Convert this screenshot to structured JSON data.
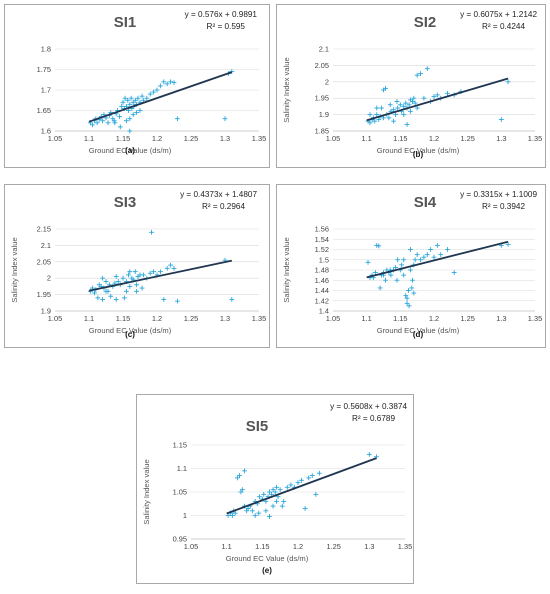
{
  "chart_data": [
    {
      "type": "scatter",
      "title": "SI1",
      "subfigure": "(a)",
      "equation": "y = 0.576x + 0.9891",
      "r2": "R² = 0.595",
      "xlabel": "Ground EC Value (ds/m)",
      "ylabel": "",
      "xlim": [
        1.05,
        1.35
      ],
      "ylim": [
        1.6,
        1.8
      ],
      "xticks": [
        "1.05",
        "1.1",
        "1.15",
        "1.2",
        "1.25",
        "1.3",
        "1.35"
      ],
      "yticks": [
        "1.6",
        "1.65",
        "1.7",
        "1.75",
        "1.8"
      ],
      "trendline": {
        "slope": 0.576,
        "intercept": 0.9891,
        "x": [
          1.1,
          1.31
        ]
      },
      "points": [
        [
          1.102,
          1.62
        ],
        [
          1.105,
          1.615
        ],
        [
          1.108,
          1.625
        ],
        [
          1.11,
          1.63
        ],
        [
          1.112,
          1.62
        ],
        [
          1.115,
          1.628
        ],
        [
          1.118,
          1.635
        ],
        [
          1.12,
          1.625
        ],
        [
          1.122,
          1.64
        ],
        [
          1.125,
          1.632
        ],
        [
          1.128,
          1.62
        ],
        [
          1.13,
          1.638
        ],
        [
          1.132,
          1.645
        ],
        [
          1.135,
          1.63
        ],
        [
          1.137,
          1.625
        ],
        [
          1.14,
          1.642
        ],
        [
          1.142,
          1.65
        ],
        [
          1.145,
          1.635
        ],
        [
          1.148,
          1.66
        ],
        [
          1.15,
          1.67
        ],
        [
          1.152,
          1.655
        ],
        [
          1.153,
          1.68
        ],
        [
          1.155,
          1.66
        ],
        [
          1.157,
          1.675
        ],
        [
          1.158,
          1.65
        ],
        [
          1.16,
          1.665
        ],
        [
          1.162,
          1.68
        ],
        [
          1.163,
          1.655
        ],
        [
          1.165,
          1.67
        ],
        [
          1.166,
          1.66
        ],
        [
          1.168,
          1.675
        ],
        [
          1.17,
          1.665
        ],
        [
          1.172,
          1.68
        ],
        [
          1.175,
          1.67
        ],
        [
          1.178,
          1.685
        ],
        [
          1.18,
          1.675
        ],
        [
          1.185,
          1.68
        ],
        [
          1.19,
          1.69
        ],
        [
          1.195,
          1.695
        ],
        [
          1.2,
          1.7
        ],
        [
          1.205,
          1.71
        ],
        [
          1.21,
          1.72
        ],
        [
          1.215,
          1.715
        ],
        [
          1.22,
          1.72
        ],
        [
          1.225,
          1.718
        ],
        [
          1.23,
          1.63
        ],
        [
          1.3,
          1.63
        ],
        [
          1.305,
          1.74
        ],
        [
          1.31,
          1.745
        ],
        [
          1.138,
          1.62
        ],
        [
          1.146,
          1.61
        ],
        [
          1.155,
          1.625
        ],
        [
          1.16,
          1.63
        ],
        [
          1.165,
          1.64
        ],
        [
          1.17,
          1.645
        ],
        [
          1.175,
          1.65
        ],
        [
          1.16,
          1.6
        ]
      ]
    },
    {
      "type": "scatter",
      "title": "SI2",
      "subfigure": "(b)",
      "equation": "y = 0.6075x + 1.2142",
      "r2": "R² = 0.4244",
      "xlabel": "Ground EC Value (ds/m)",
      "ylabel": "Salinity Index value",
      "xlim": [
        1.05,
        1.35
      ],
      "ylim": [
        1.85,
        2.1
      ],
      "xticks": [
        "1.05",
        "1.1",
        "1.15",
        "1.2",
        "1.25",
        "1.3",
        "1.35"
      ],
      "yticks": [
        "1.85",
        "1.9",
        "1.95",
        "2",
        "2.05",
        "2.1"
      ],
      "trendline": {
        "slope": 0.6075,
        "intercept": 1.2142,
        "x": [
          1.1,
          1.31
        ]
      },
      "points": [
        [
          1.102,
          1.88
        ],
        [
          1.105,
          1.875
        ],
        [
          1.108,
          1.885
        ],
        [
          1.11,
          1.89
        ],
        [
          1.112,
          1.88
        ],
        [
          1.115,
          1.9
        ],
        [
          1.118,
          1.885
        ],
        [
          1.12,
          1.895
        ],
        [
          1.122,
          1.92
        ],
        [
          1.125,
          1.975
        ],
        [
          1.128,
          1.98
        ],
        [
          1.13,
          1.9
        ],
        [
          1.133,
          1.89
        ],
        [
          1.136,
          1.91
        ],
        [
          1.14,
          1.915
        ],
        [
          1.143,
          1.9
        ],
        [
          1.146,
          1.92
        ],
        [
          1.15,
          1.93
        ],
        [
          1.152,
          1.91
        ],
        [
          1.155,
          1.925
        ],
        [
          1.158,
          1.935
        ],
        [
          1.16,
          1.92
        ],
        [
          1.163,
          1.93
        ],
        [
          1.165,
          1.945
        ],
        [
          1.168,
          1.94
        ],
        [
          1.17,
          1.95
        ],
        [
          1.172,
          1.935
        ],
        [
          1.175,
          2.02
        ],
        [
          1.18,
          2.025
        ],
        [
          1.19,
          2.04
        ],
        [
          1.185,
          1.95
        ],
        [
          1.195,
          1.94
        ],
        [
          1.2,
          1.955
        ],
        [
          1.205,
          1.96
        ],
        [
          1.21,
          1.95
        ],
        [
          1.22,
          1.965
        ],
        [
          1.23,
          1.96
        ],
        [
          1.24,
          1.97
        ],
        [
          1.3,
          1.885
        ],
        [
          1.31,
          2.0
        ],
        [
          1.105,
          1.9
        ],
        [
          1.115,
          1.92
        ],
        [
          1.125,
          1.89
        ],
        [
          1.135,
          1.93
        ],
        [
          1.145,
          1.94
        ],
        [
          1.155,
          1.9
        ],
        [
          1.165,
          1.91
        ],
        [
          1.175,
          1.92
        ],
        [
          1.14,
          1.88
        ],
        [
          1.16,
          1.87
        ]
      ]
    },
    {
      "type": "scatter",
      "title": "SI3",
      "subfigure": "(c)",
      "equation": "y = 0.4373x + 1.4807",
      "r2": "R² = 0.2964",
      "xlabel": "Ground EC Value (ds/m)",
      "ylabel": "Salinity Index value",
      "xlim": [
        1.05,
        1.35
      ],
      "ylim": [
        1.9,
        2.15
      ],
      "xticks": [
        "1.05",
        "1.1",
        "1.15",
        "1.2",
        "1.25",
        "1.3",
        "1.35"
      ],
      "yticks": [
        "1.9",
        "1.95",
        "2",
        "2.05",
        "2.1",
        "2.15"
      ],
      "trendline": {
        "slope": 0.4373,
        "intercept": 1.4807,
        "x": [
          1.1,
          1.31
        ]
      },
      "points": [
        [
          1.102,
          1.96
        ],
        [
          1.105,
          1.97
        ],
        [
          1.108,
          1.955
        ],
        [
          1.11,
          1.965
        ],
        [
          1.113,
          1.94
        ],
        [
          1.115,
          1.98
        ],
        [
          1.118,
          1.975
        ],
        [
          1.12,
          1.935
        ],
        [
          1.122,
          1.97
        ],
        [
          1.125,
          1.99
        ],
        [
          1.128,
          1.96
        ],
        [
          1.13,
          1.98
        ],
        [
          1.132,
          1.945
        ],
        [
          1.135,
          1.975
        ],
        [
          1.138,
          1.985
        ],
        [
          1.14,
          1.935
        ],
        [
          1.143,
          1.99
        ],
        [
          1.146,
          1.98
        ],
        [
          1.15,
          2.0
        ],
        [
          1.152,
          1.94
        ],
        [
          1.155,
          1.99
        ],
        [
          1.158,
          2.01
        ],
        [
          1.16,
          1.975
        ],
        [
          1.163,
          2.0
        ],
        [
          1.165,
          1.995
        ],
        [
          1.168,
          2.02
        ],
        [
          1.17,
          1.96
        ],
        [
          1.172,
          2.005
        ],
        [
          1.175,
          2.01
        ],
        [
          1.178,
          1.97
        ],
        [
          1.18,
          2.01
        ],
        [
          1.185,
          2.0
        ],
        [
          1.19,
          2.015
        ],
        [
          1.192,
          2.14
        ],
        [
          1.195,
          2.02
        ],
        [
          1.2,
          2.01
        ],
        [
          1.205,
          2.02
        ],
        [
          1.21,
          1.935
        ],
        [
          1.215,
          2.03
        ],
        [
          1.22,
          2.04
        ],
        [
          1.225,
          2.03
        ],
        [
          1.23,
          1.93
        ],
        [
          1.3,
          2.055
        ],
        [
          1.31,
          1.935
        ],
        [
          1.12,
          2.0
        ],
        [
          1.14,
          2.005
        ],
        [
          1.16,
          2.02
        ],
        [
          1.125,
          1.96
        ],
        [
          1.155,
          1.96
        ],
        [
          1.17,
          1.98
        ]
      ]
    },
    {
      "type": "scatter",
      "title": "SI4",
      "subfigure": "(d)",
      "equation": "y = 0.3315x + 1.1009",
      "r2": "R² = 0.3942",
      "xlabel": "Ground EC Value (ds/m)",
      "ylabel": "Salinity Index value",
      "xlim": [
        1.05,
        1.35
      ],
      "ylim": [
        1.4,
        1.56
      ],
      "xticks": [
        "1.05",
        "1.1",
        "1.15",
        "1.2",
        "1.25",
        "1.3",
        "1.35"
      ],
      "yticks": [
        "1.4",
        "1.42",
        "1.44",
        "1.46",
        "1.48",
        "1.5",
        "1.52",
        "1.54",
        "1.56"
      ],
      "trendline": {
        "slope": 0.3315,
        "intercept": 1.1009,
        "x": [
          1.1,
          1.31
        ]
      },
      "points": [
        [
          1.102,
          1.495
        ],
        [
          1.105,
          1.465
        ],
        [
          1.108,
          1.47
        ],
        [
          1.11,
          1.465
        ],
        [
          1.113,
          1.475
        ],
        [
          1.115,
          1.528
        ],
        [
          1.118,
          1.527
        ],
        [
          1.12,
          1.445
        ],
        [
          1.122,
          1.47
        ],
        [
          1.125,
          1.475
        ],
        [
          1.128,
          1.46
        ],
        [
          1.13,
          1.48
        ],
        [
          1.133,
          1.475
        ],
        [
          1.136,
          1.47
        ],
        [
          1.14,
          1.48
        ],
        [
          1.143,
          1.485
        ],
        [
          1.146,
          1.5
        ],
        [
          1.15,
          1.48
        ],
        [
          1.152,
          1.49
        ],
        [
          1.155,
          1.5
        ],
        [
          1.158,
          1.43
        ],
        [
          1.16,
          1.425
        ],
        [
          1.162,
          1.44
        ],
        [
          1.163,
          1.41
        ],
        [
          1.165,
          1.52
        ],
        [
          1.167,
          1.445
        ],
        [
          1.168,
          1.46
        ],
        [
          1.17,
          1.49
        ],
        [
          1.172,
          1.5
        ],
        [
          1.175,
          1.51
        ],
        [
          1.18,
          1.5
        ],
        [
          1.185,
          1.505
        ],
        [
          1.19,
          1.51
        ],
        [
          1.195,
          1.52
        ],
        [
          1.2,
          1.505
        ],
        [
          1.205,
          1.528
        ],
        [
          1.21,
          1.51
        ],
        [
          1.22,
          1.52
        ],
        [
          1.23,
          1.475
        ],
        [
          1.3,
          1.528
        ],
        [
          1.31,
          1.53
        ],
        [
          1.125,
          1.47
        ],
        [
          1.135,
          1.48
        ],
        [
          1.145,
          1.46
        ],
        [
          1.155,
          1.47
        ],
        [
          1.165,
          1.48
        ],
        [
          1.16,
          1.415
        ],
        [
          1.17,
          1.435
        ]
      ]
    },
    {
      "type": "scatter",
      "title": "SI5",
      "subfigure": "(e)",
      "equation": "y = 0.5608x + 0.3874",
      "r2": "R² = 0.6789",
      "xlabel": "Ground EC Value (ds/m)",
      "ylabel": "Salinity Index value",
      "xlim": [
        1.05,
        1.35
      ],
      "ylim": [
        0.95,
        1.15
      ],
      "xticks": [
        "1.05",
        "1.1",
        "1.15",
        "1.2",
        "1.25",
        "1.3",
        "1.35"
      ],
      "yticks": [
        "0.95",
        "1",
        "1.05",
        "1.1",
        "1.15"
      ],
      "trendline": {
        "slope": 0.5608,
        "intercept": 0.3874,
        "x": [
          1.1,
          1.31
        ]
      },
      "points": [
        [
          1.102,
          1.0
        ],
        [
          1.105,
          1.005
        ],
        [
          1.108,
          1.0
        ],
        [
          1.11,
          1.01
        ],
        [
          1.112,
          1.005
        ],
        [
          1.115,
          1.08
        ],
        [
          1.118,
          1.085
        ],
        [
          1.12,
          1.05
        ],
        [
          1.122,
          1.055
        ],
        [
          1.125,
          1.095
        ],
        [
          1.128,
          1.01
        ],
        [
          1.13,
          1.015
        ],
        [
          1.133,
          1.02
        ],
        [
          1.136,
          1.01
        ],
        [
          1.14,
          1.03
        ],
        [
          1.143,
          1.025
        ],
        [
          1.146,
          1.04
        ],
        [
          1.15,
          1.035
        ],
        [
          1.152,
          1.045
        ],
        [
          1.155,
          1.03
        ],
        [
          1.158,
          1.04
        ],
        [
          1.16,
          1.05
        ],
        [
          1.163,
          1.045
        ],
        [
          1.165,
          1.055
        ],
        [
          1.168,
          1.05
        ],
        [
          1.17,
          1.06
        ],
        [
          1.172,
          1.04
        ],
        [
          1.175,
          1.055
        ],
        [
          1.178,
          1.02
        ],
        [
          1.18,
          1.03
        ],
        [
          1.185,
          1.06
        ],
        [
          1.19,
          1.065
        ],
        [
          1.195,
          1.06
        ],
        [
          1.2,
          1.07
        ],
        [
          1.205,
          1.075
        ],
        [
          1.21,
          1.015
        ],
        [
          1.215,
          1.08
        ],
        [
          1.22,
          1.085
        ],
        [
          1.23,
          1.09
        ],
        [
          1.225,
          1.045
        ],
        [
          1.3,
          1.13
        ],
        [
          1.31,
          1.125
        ],
        [
          1.14,
          1.0
        ],
        [
          1.155,
          1.01
        ],
        [
          1.16,
          0.998
        ],
        [
          1.165,
          1.02
        ],
        [
          1.17,
          1.03
        ],
        [
          1.145,
          1.005
        ],
        [
          1.125,
          1.02
        ]
      ]
    }
  ]
}
